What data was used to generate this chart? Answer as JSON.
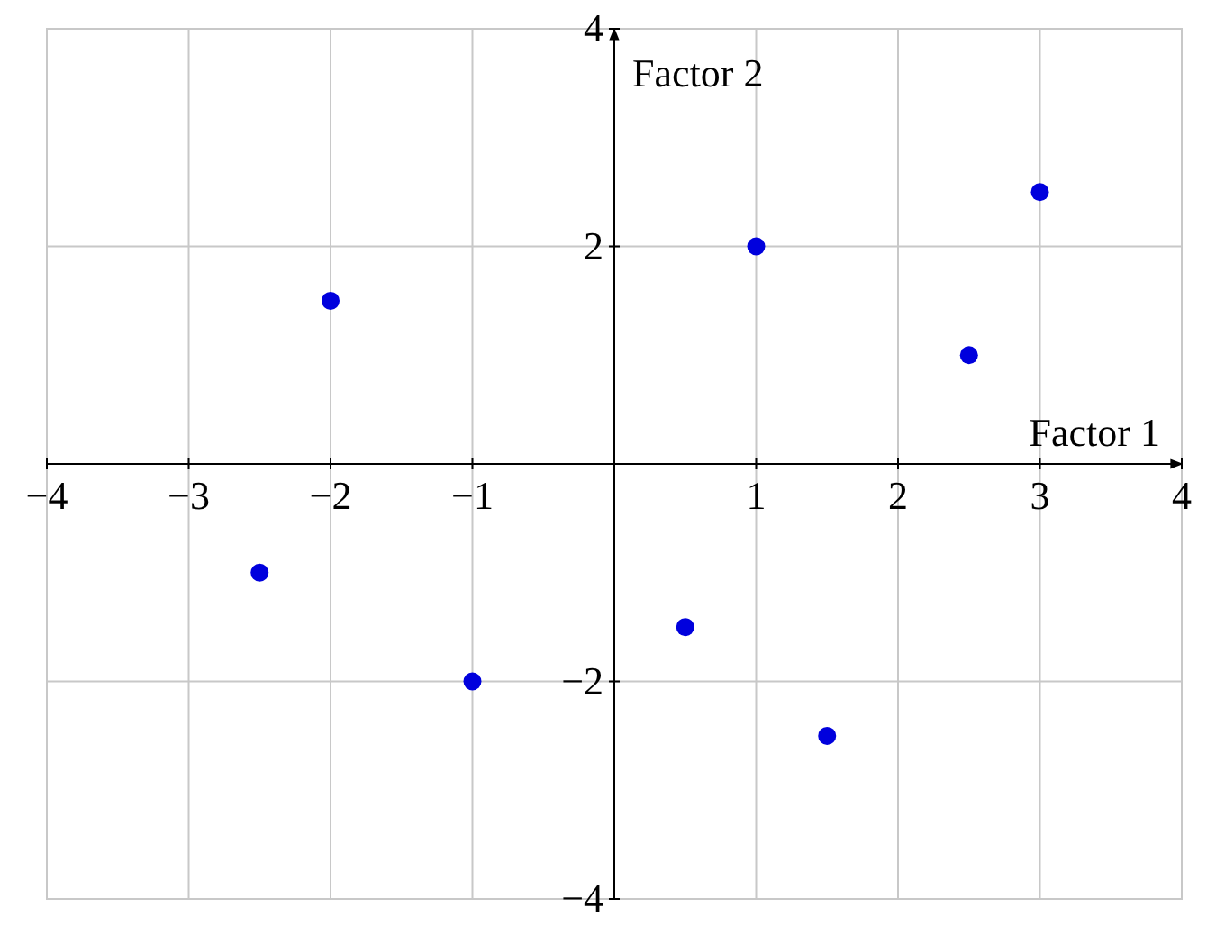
{
  "chart_data": {
    "type": "scatter",
    "xlabel": "Factor 1",
    "ylabel": "Factor 2",
    "x": [
      -2.5,
      -2,
      -1,
      0.5,
      1,
      1.5,
      2.5,
      3
    ],
    "values": [
      -1,
      1.5,
      -2,
      -1.5,
      2,
      -2.5,
      1,
      2.5
    ],
    "color": "#0000dd",
    "marker": "circle",
    "xlim": [
      -4,
      4
    ],
    "ylim": [
      -4,
      4
    ],
    "xticks": [
      -4,
      -3,
      -2,
      -1,
      1,
      2,
      3,
      4
    ],
    "yticks": [
      -4,
      -2,
      2,
      4
    ],
    "grid": true
  }
}
